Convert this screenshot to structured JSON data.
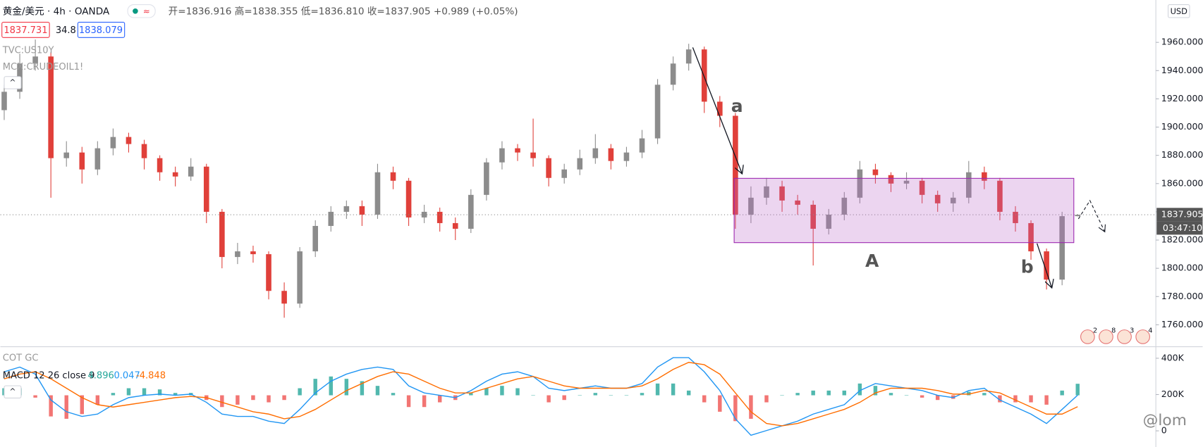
{
  "header": {
    "symbol": "黄金/美元 · 4h · OANDA",
    "ohlc": "开=1836.916 高=1838.355 低=1836.810 收=1837.905 +0.989 (+0.05%)",
    "bid": "1837.731",
    "spread": "34.8",
    "ask": "1838.079",
    "overlays": [
      "TVC:US10Y",
      "MCX:CRUDEOIL1!"
    ],
    "currency": "USD",
    "countdown": "03:47:10",
    "watermark": "@lom",
    "events": [
      "2",
      "8",
      "3",
      "4"
    ]
  },
  "chart_data": [
    {
      "type": "candlestick",
      "up_color": "#8c8c8c",
      "down_color": "#e0403a",
      "open": [
        1912,
        1925,
        1945,
        1950,
        1878,
        1882,
        1870,
        1885,
        1893,
        1888,
        1878,
        1868,
        1865,
        1872,
        1840,
        1808,
        1812,
        1810,
        1784,
        1775,
        1812,
        1830,
        1840,
        1844,
        1838,
        1868,
        1862,
        1836,
        1840,
        1832,
        1828,
        1852,
        1875,
        1885,
        1882,
        1878,
        1864,
        1870,
        1878,
        1885,
        1876,
        1882,
        1892,
        1930,
        1945,
        1955,
        1918,
        1908,
        1838,
        1850,
        1858,
        1848,
        1845,
        1828,
        1838,
        1850,
        1870,
        1866,
        1860,
        1862,
        1852,
        1846,
        1850,
        1868,
        1862,
        1840,
        1832,
        1812,
        1792,
        1836.916
      ],
      "high": [
        1930,
        1952,
        1962,
        1953,
        1890,
        1886,
        1890,
        1899,
        1896,
        1891,
        1880,
        1872,
        1878,
        1874,
        1842,
        1818,
        1816,
        1812,
        1790,
        1815,
        1834,
        1844,
        1848,
        1848,
        1874,
        1872,
        1864,
        1845,
        1843,
        1836,
        1856,
        1878,
        1890,
        1888,
        1906,
        1880,
        1874,
        1884,
        1895,
        1888,
        1886,
        1898,
        1934,
        1950,
        1959,
        1957,
        1922,
        1910,
        1858,
        1864,
        1862,
        1852,
        1848,
        1842,
        1854,
        1876,
        1874,
        1868,
        1868,
        1864,
        1855,
        1854,
        1876,
        1872,
        1864,
        1844,
        1834,
        1814,
        1840,
        1838.355
      ],
      "low": [
        1905,
        1920,
        1940,
        1850,
        1872,
        1860,
        1866,
        1880,
        1882,
        1870,
        1862,
        1858,
        1862,
        1832,
        1800,
        1803,
        1804,
        1778,
        1765,
        1772,
        1808,
        1826,
        1835,
        1830,
        1835,
        1856,
        1830,
        1832,
        1826,
        1820,
        1825,
        1848,
        1870,
        1876,
        1872,
        1858,
        1860,
        1866,
        1874,
        1870,
        1872,
        1878,
        1888,
        1926,
        1940,
        1910,
        1900,
        1828,
        1832,
        1845,
        1840,
        1838,
        1802,
        1824,
        1834,
        1846,
        1860,
        1854,
        1856,
        1846,
        1840,
        1840,
        1846,
        1856,
        1834,
        1826,
        1806,
        1785,
        1788,
        1836.81
      ],
      "close": [
        1925,
        1945,
        1950,
        1878,
        1882,
        1870,
        1885,
        1893,
        1888,
        1878,
        1868,
        1865,
        1872,
        1840,
        1808,
        1812,
        1810,
        1784,
        1775,
        1812,
        1830,
        1840,
        1844,
        1838,
        1868,
        1862,
        1836,
        1840,
        1832,
        1828,
        1852,
        1875,
        1885,
        1882,
        1878,
        1864,
        1870,
        1878,
        1885,
        1876,
        1882,
        1892,
        1930,
        1945,
        1955,
        1918,
        1908,
        1838,
        1850,
        1858,
        1848,
        1845,
        1828,
        1838,
        1850,
        1870,
        1866,
        1860,
        1862,
        1852,
        1846,
        1850,
        1868,
        1862,
        1840,
        1832,
        1812,
        1792,
        1836.916,
        1837.905
      ],
      "ylim": [
        1745,
        1990
      ],
      "yticks": [
        {
          "value": 1760,
          "label": "1760.000"
        },
        {
          "value": 1780,
          "label": "1780.000"
        },
        {
          "value": 1800,
          "label": "1800.000"
        },
        {
          "value": 1820,
          "label": "1820.000"
        },
        {
          "value": 1840,
          "label": "1840.000"
        },
        {
          "value": 1860,
          "label": "1860.000"
        },
        {
          "value": 1880,
          "label": "1880.000"
        },
        {
          "value": 1900,
          "label": "1900.000"
        },
        {
          "value": 1920,
          "label": "1920.000"
        },
        {
          "value": 1940,
          "label": "1940.000"
        },
        {
          "value": 1960,
          "label": "1960.000"
        }
      ],
      "annotations": [
        "a",
        "A",
        "b"
      ]
    },
    {
      "type": "macd",
      "title": "MACD 12 26 close 9",
      "indicator_label": "COT GC",
      "series": [
        {
          "style": "histogram",
          "color": "#26a69a",
          "negative_color": "#ef5350",
          "values": [
            3,
            3,
            -1,
            -9,
            -10,
            -8,
            -4,
            1,
            3,
            3,
            2.5,
            1,
            1,
            -2,
            -5,
            -4,
            -2,
            -3,
            -2,
            3,
            7,
            8,
            7,
            6,
            4,
            1,
            -5,
            -5,
            -3,
            -2,
            1,
            3,
            4,
            3,
            0,
            -3,
            -2,
            0,
            1,
            0,
            0,
            1,
            5,
            5,
            2,
            -3,
            -7,
            -11,
            -10,
            -3,
            0,
            1,
            2,
            2,
            2,
            5,
            4,
            1,
            0,
            -1,
            -2,
            -1.5,
            1.5,
            1,
            -3,
            -3,
            -3,
            -4,
            2,
            4.896
          ]
        },
        {
          "style": "line",
          "color": "#2196f3",
          "values": [
            10,
            12,
            9,
            -2,
            -7,
            -9,
            -8,
            -4,
            -1,
            0,
            0.5,
            0,
            0.5,
            -3,
            -8,
            -9,
            -9,
            -11,
            -12,
            -6,
            1,
            6,
            9,
            11,
            12,
            11,
            4,
            1,
            0,
            -1,
            2,
            6,
            9,
            10,
            8,
            3,
            2,
            3,
            4,
            3,
            3,
            5,
            12,
            16,
            16,
            10,
            2,
            -10,
            -17,
            -15,
            -13,
            -11,
            -8,
            -6,
            -4,
            2,
            5,
            4,
            3,
            2,
            0,
            -1,
            2,
            3,
            -2,
            -5,
            -8,
            -12,
            -6,
            0.047
          ]
        },
        {
          "style": "line",
          "color": "#ff6d00",
          "values": [
            7,
            9,
            10,
            7,
            3,
            -1,
            -4,
            -5,
            -4,
            -3,
            -2,
            -1,
            -0.5,
            -1,
            -3,
            -5,
            -7,
            -8,
            -10,
            -9,
            -6,
            -2,
            2,
            5,
            8,
            10,
            9,
            6,
            3,
            1,
            1,
            3,
            5,
            7,
            8,
            6,
            4,
            3,
            3,
            3,
            3,
            4,
            7,
            11,
            14,
            13,
            9,
            1,
            -7,
            -12,
            -13,
            -12,
            -10,
            -8,
            -6,
            -3,
            1,
            3,
            3,
            3,
            2,
            0.5,
            0.5,
            2,
            1,
            -2,
            -5,
            -8,
            -8,
            -4.848
          ]
        }
      ],
      "ylim": [
        -22,
        20
      ],
      "y2lim": [
        -89000,
        455000
      ],
      "y2ticks": [
        {
          "value": 400000,
          "label": "400K"
        },
        {
          "value": 200000,
          "label": "200K"
        },
        0
      ]
    }
  ]
}
